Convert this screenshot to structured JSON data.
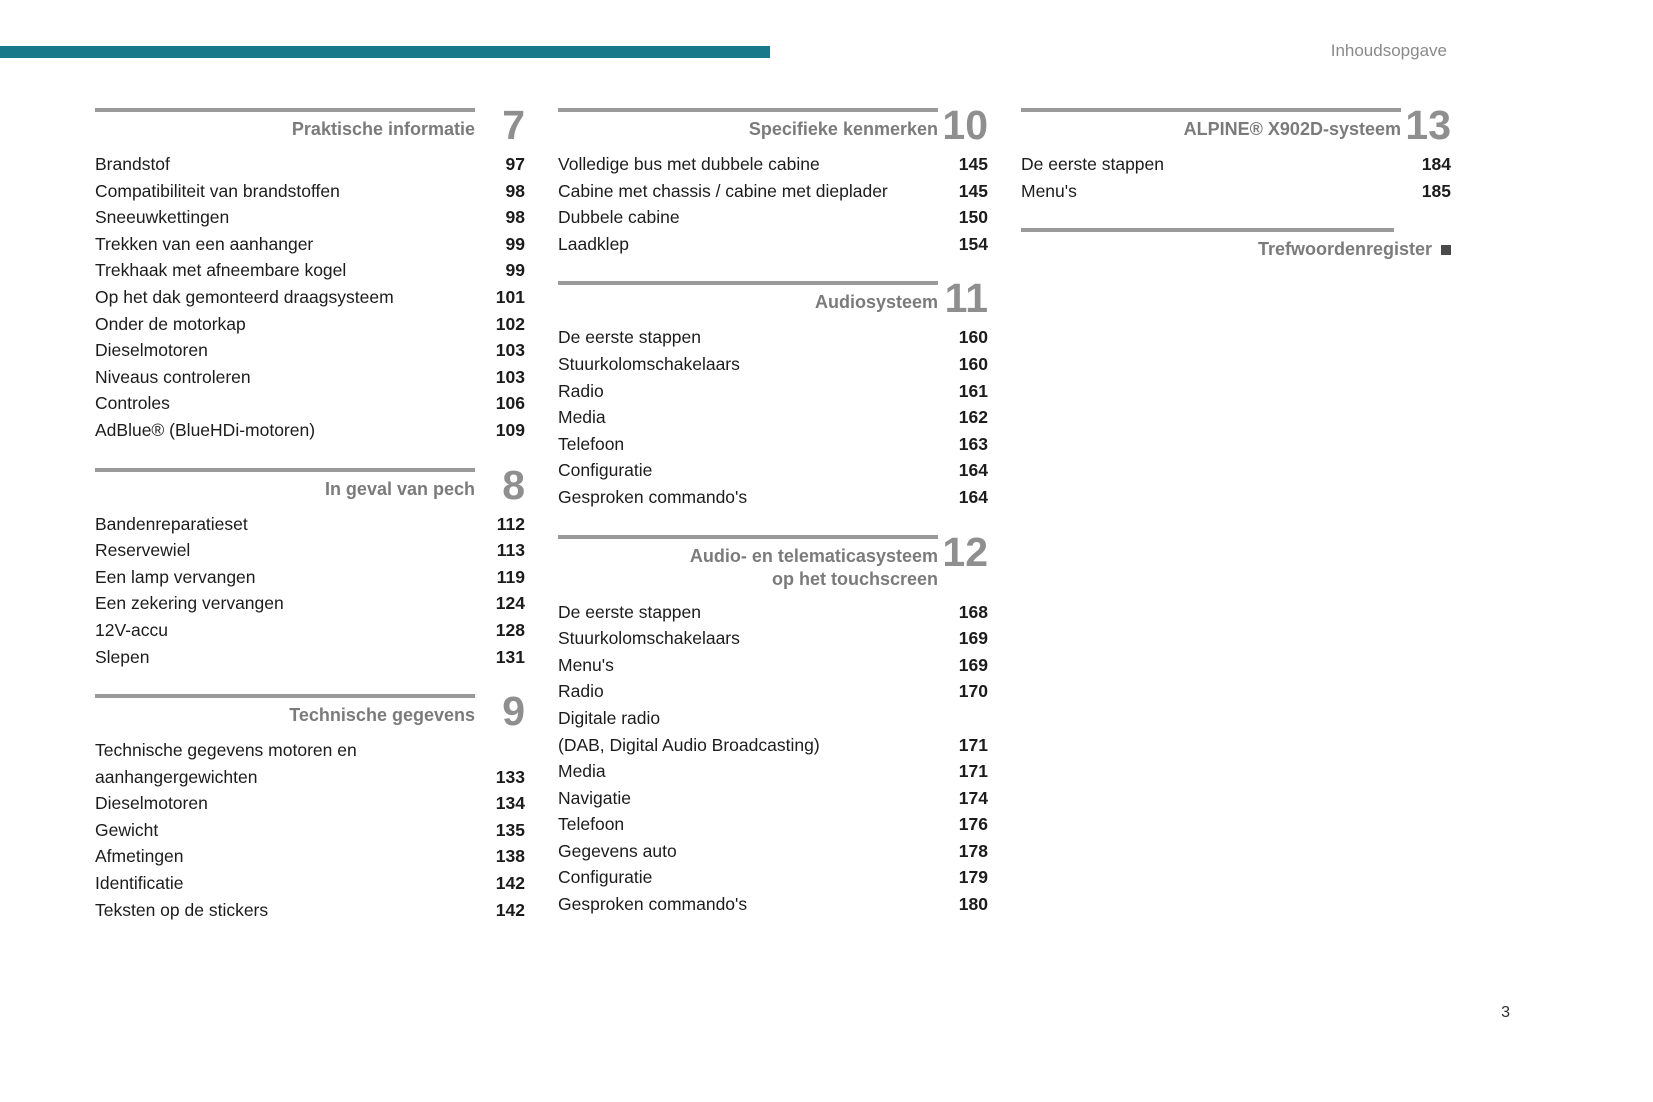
{
  "page": {
    "header_label": "Inhoudsopgave",
    "page_number": "3",
    "accent_color": "#17798a"
  },
  "columns": [
    {
      "sections": [
        {
          "title": "Praktische informatie",
          "number": "7",
          "items": [
            {
              "label": "Brandstof",
              "page": "97"
            },
            {
              "label": "Compatibiliteit van brandstoffen",
              "page": "98"
            },
            {
              "label": "Sneeuwkettingen",
              "page": "98"
            },
            {
              "label": "Trekken van een aanhanger",
              "page": "99"
            },
            {
              "label": "Trekhaak met afneembare kogel",
              "page": "99"
            },
            {
              "label": "Op het dak gemonteerd draagsysteem",
              "page": "101"
            },
            {
              "label": "Onder de motorkap",
              "page": "102"
            },
            {
              "label": "Dieselmotoren",
              "page": "103"
            },
            {
              "label": "Niveaus controleren",
              "page": "103"
            },
            {
              "label": "Controles",
              "page": "106"
            },
            {
              "label": "AdBlue® (BlueHDi-motoren)",
              "page": "109"
            }
          ]
        },
        {
          "title": "In geval van pech",
          "number": "8",
          "items": [
            {
              "label": "Bandenreparatieset",
              "page": "112"
            },
            {
              "label": "Reservewiel",
              "page": "113"
            },
            {
              "label": "Een lamp vervangen",
              "page": "119"
            },
            {
              "label": "Een zekering vervangen",
              "page": "124"
            },
            {
              "label": "12V-accu",
              "page": "128"
            },
            {
              "label": "Slepen",
              "page": "131"
            }
          ]
        },
        {
          "title": "Technische gegevens",
          "number": "9",
          "items": [
            {
              "label": "Technische gegevens motoren en\naanhangergewichten",
              "page": "133"
            },
            {
              "label": "Dieselmotoren",
              "page": "134"
            },
            {
              "label": "Gewicht",
              "page": "135"
            },
            {
              "label": "Afmetingen",
              "page": "138"
            },
            {
              "label": "Identificatie",
              "page": "142"
            },
            {
              "label": "Teksten op de stickers",
              "page": "142"
            }
          ]
        }
      ]
    },
    {
      "sections": [
        {
          "title": "Specifieke kenmerken",
          "number": "10",
          "items": [
            {
              "label": "Volledige bus met dubbele cabine",
              "page": "145"
            },
            {
              "label": "Cabine met chassis / cabine met dieplader",
              "page": "145"
            },
            {
              "label": "Dubbele cabine",
              "page": "150"
            },
            {
              "label": "Laadklep",
              "page": "154"
            }
          ]
        },
        {
          "title": "Audiosysteem",
          "number": "11",
          "items": [
            {
              "label": "De eerste stappen",
              "page": "160"
            },
            {
              "label": "Stuurkolomschakelaars",
              "page": "160"
            },
            {
              "label": "Radio",
              "page": "161"
            },
            {
              "label": "Media",
              "page": "162"
            },
            {
              "label": "Telefoon",
              "page": "163"
            },
            {
              "label": "Configuratie",
              "page": "164"
            },
            {
              "label": "Gesproken commando's",
              "page": "164"
            }
          ]
        },
        {
          "title": "Audio- en telematicasysteem\nop het touchscreen",
          "number": "12",
          "items": [
            {
              "label": "De eerste stappen",
              "page": "168"
            },
            {
              "label": "Stuurkolomschakelaars",
              "page": "169"
            },
            {
              "label": "Menu's",
              "page": "169"
            },
            {
              "label": "Radio",
              "page": "170"
            },
            {
              "label": "Digitale radio\n(DAB, Digital Audio Broadcasting)",
              "page": "171"
            },
            {
              "label": "Media",
              "page": "171"
            },
            {
              "label": "Navigatie",
              "page": "174"
            },
            {
              "label": "Telefoon",
              "page": "176"
            },
            {
              "label": "Gegevens auto",
              "page": "178"
            },
            {
              "label": "Configuratie",
              "page": "179"
            },
            {
              "label": "Gesproken commando's",
              "page": "180"
            }
          ]
        }
      ]
    },
    {
      "sections": [
        {
          "title": "ALPINE® X902D-systeem",
          "number": "13",
          "items": [
            {
              "label": "De eerste stappen",
              "page": "184"
            },
            {
              "label": "Menu's",
              "page": "185"
            }
          ]
        },
        {
          "title": "Trefwoordenregister",
          "type": "index"
        }
      ]
    }
  ]
}
